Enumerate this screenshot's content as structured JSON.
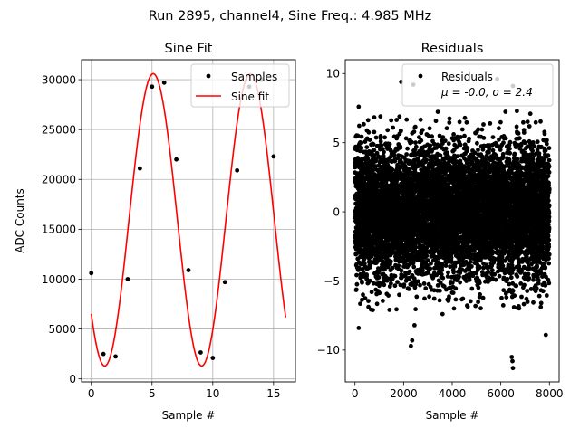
{
  "figure": {
    "suptitle": "Run 2895, channel4, Sine Freq.: 4.985 MHz"
  },
  "colors": {
    "fit_line": "#ff0000",
    "points": "#000000",
    "grid": "#b0b0b0"
  },
  "chart_data": [
    {
      "type": "scatter",
      "title": "Sine Fit",
      "xlabel": "Sample #",
      "ylabel": "ADC Counts",
      "xlim": [
        -0.8,
        16.8
      ],
      "ylim": [
        -300,
        32000
      ],
      "xticks": [
        0,
        5,
        10,
        15
      ],
      "yticks": [
        0,
        5000,
        10000,
        15000,
        20000,
        25000,
        30000
      ],
      "grid": true,
      "legend_position": "top-right",
      "legend": [
        "Samples",
        "Sine fit"
      ],
      "series": [
        {
          "name": "Samples",
          "kind": "points",
          "x": [
            0,
            1,
            2,
            3,
            4,
            5,
            6,
            7,
            8,
            9,
            10,
            11,
            12,
            13,
            14,
            15
          ],
          "y": [
            10600,
            2500,
            2250,
            10000,
            21100,
            29300,
            29700,
            22000,
            10900,
            2650,
            2100,
            9700,
            20900,
            29300,
            30000,
            22300
          ]
        },
        {
          "name": "Sine fit",
          "kind": "line",
          "model": {
            "amplitude": 14650,
            "offset": 15950,
            "period": 7.98,
            "phase": 0.7,
            "x_range": [
              0,
              16
            ]
          }
        }
      ]
    },
    {
      "type": "scatter",
      "title": "Residuals",
      "xlabel": "Sample #",
      "ylabel": "",
      "xlim": [
        -400,
        8400
      ],
      "ylim": [
        -12.3,
        11
      ],
      "xticks": [
        0,
        2000,
        4000,
        6000,
        8000
      ],
      "yticks": [
        -10,
        -5,
        0,
        5,
        10
      ],
      "grid": false,
      "legend_position": "top-right",
      "legend": [
        "Residuals",
        "μ = -0.0, σ = 2.4"
      ],
      "series": [
        {
          "name": "Residuals",
          "kind": "points",
          "n_points": 8000,
          "mean": 0.0,
          "sigma": 2.4,
          "outliers": [
            {
              "x": 150,
              "y": -8.4
            },
            {
              "x": 2300,
              "y": -9.7
            },
            {
              "x": 2350,
              "y": -9.3
            },
            {
              "x": 2450,
              "y": -8.2
            },
            {
              "x": 6450,
              "y": -10.5
            },
            {
              "x": 6500,
              "y": -11.3
            },
            {
              "x": 6480,
              "y": -10.8
            },
            {
              "x": 1900,
              "y": 9.4
            },
            {
              "x": 2400,
              "y": 9.2
            },
            {
              "x": 5850,
              "y": 9.6
            },
            {
              "x": 6500,
              "y": 9.1
            },
            {
              "x": 7850,
              "y": -8.9
            },
            {
              "x": 3600,
              "y": -7.4
            },
            {
              "x": 150,
              "y": 7.6
            }
          ]
        }
      ]
    }
  ]
}
